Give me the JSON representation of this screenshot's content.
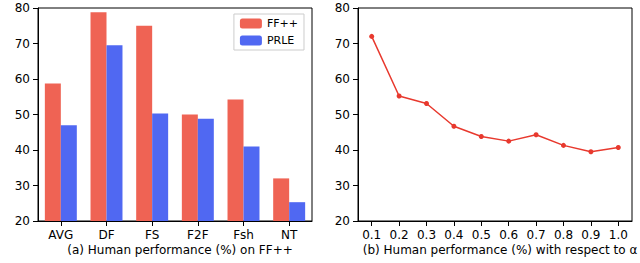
{
  "chart_data": [
    {
      "type": "bar",
      "title": "(a) Human performance (%) on FF++",
      "categories": [
        "AVG",
        "DF",
        "FS",
        "F2F",
        "Fsh",
        "NT"
      ],
      "series": [
        {
          "name": "FF++",
          "color": "#ef6354",
          "values": [
            58.7,
            78.8,
            75.0,
            50.0,
            54.2,
            32.0
          ]
        },
        {
          "name": "PRLE",
          "color": "#5068f2",
          "values": [
            47.0,
            69.5,
            50.3,
            48.8,
            41.0,
            25.3
          ]
        }
      ],
      "ylim": [
        20,
        80
      ],
      "yticks": [
        20,
        30,
        40,
        50,
        60,
        70,
        80
      ],
      "grid": false,
      "legend": "upper right"
    },
    {
      "type": "line",
      "title": "(b) Human performance (%) with respect to α",
      "x": [
        0.1,
        0.2,
        0.3,
        0.4,
        0.5,
        0.6,
        0.7,
        0.8,
        0.9,
        1.0
      ],
      "series": [
        {
          "color": "#e8392e",
          "marker": "circle",
          "values": [
            72.0,
            55.2,
            53.1,
            46.7,
            43.8,
            42.5,
            44.3,
            41.3,
            39.5,
            40.7
          ]
        }
      ],
      "xlim": [
        0.05,
        1.05
      ],
      "xticks": [
        0.1,
        0.2,
        0.3,
        0.4,
        0.5,
        0.6,
        0.7,
        0.8,
        0.9,
        {
          "value": 1,
          "label": "1.0"
        }
      ],
      "ylim": [
        20,
        80
      ],
      "yticks": [
        20,
        30,
        40,
        50,
        60,
        70,
        80
      ],
      "grid": false
    }
  ]
}
